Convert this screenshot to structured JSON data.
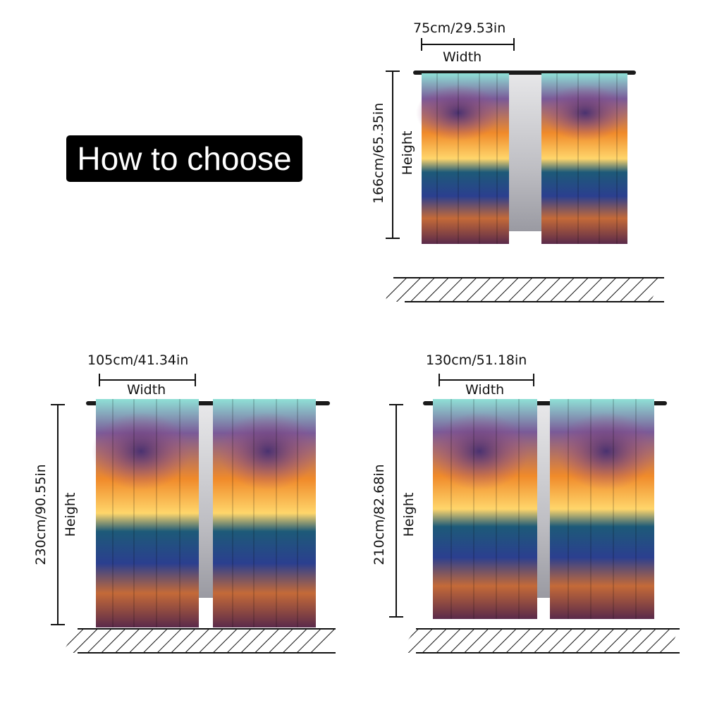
{
  "title": "How to choose",
  "width_label": "Width",
  "height_label": "Height",
  "sizes": [
    {
      "width": "75cm/29.53in",
      "height": "166cm/65.35in"
    },
    {
      "width": "105cm/41.34in",
      "height": "230cm/90.55in"
    },
    {
      "width": "130cm/51.18in",
      "height": "210cm/82.68in"
    }
  ],
  "colors": {
    "sky": "#7fd8d0",
    "sunset": "#f5a623",
    "cloud": "#5a3f78",
    "wave": "#2a4fa0"
  }
}
